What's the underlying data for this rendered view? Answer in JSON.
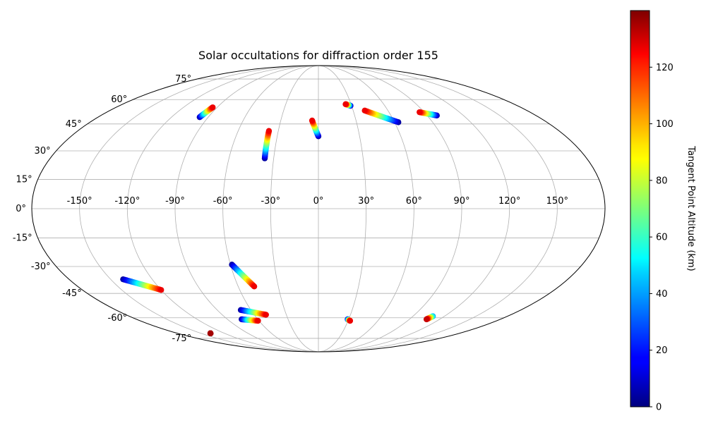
{
  "chart_data": {
    "type": "scatter",
    "projection": "mollweide",
    "title": "Solar occultations for diffraction order 155",
    "lon_ticks": [
      "-150°",
      "-120°",
      "-90°",
      "-60°",
      "-30°",
      "0°",
      "30°",
      "60°",
      "90°",
      "120°",
      "150°"
    ],
    "lat_ticks": [
      "75°",
      "60°",
      "45°",
      "30°",
      "15°",
      "0°",
      "-15°",
      "-30°",
      "-45°",
      "-60°",
      "-75°"
    ],
    "grid": true,
    "colorbar": {
      "label": "Tangent Point Altitude (km)",
      "colormap": "jet",
      "range": [
        0,
        140
      ],
      "ticks": [
        "0",
        "20",
        "40",
        "60",
        "80",
        "100",
        "120"
      ]
    },
    "tracks": [
      {
        "start": [
          -97,
          49
        ],
        "end": [
          -94,
          55
        ],
        "alt_start": 5,
        "alt_end": 125
      },
      {
        "start": [
          -36,
          26
        ],
        "end": [
          -37,
          41
        ],
        "alt_start": 5,
        "alt_end": 125
      },
      {
        "start": [
          0,
          38
        ],
        "end": [
          -5,
          47
        ],
        "alt_start": 5,
        "alt_end": 125
      },
      {
        "start": [
          29,
          56
        ],
        "end": [
          25,
          57
        ],
        "alt_start": 5,
        "alt_end": 125
      },
      {
        "start": [
          63,
          46
        ],
        "end": [
          40,
          53
        ],
        "alt_start": 5,
        "alt_end": 125
      },
      {
        "start": [
          98,
          50
        ],
        "end": [
          86,
          52
        ],
        "alt_start": 5,
        "alt_end": 125
      },
      {
        "start": [
          -141,
          -37
        ],
        "end": [
          -120,
          -43
        ],
        "alt_start": 5,
        "alt_end": 125
      },
      {
        "start": [
          -59,
          -29
        ],
        "end": [
          -48,
          -41
        ],
        "alt_start": 5,
        "alt_end": 125
      },
      {
        "start": [
          -69,
          -55
        ],
        "end": [
          -49,
          -58
        ],
        "alt_start": 5,
        "alt_end": 125
      },
      {
        "start": [
          -76,
          -61
        ],
        "end": [
          -61,
          -62
        ],
        "alt_start": 5,
        "alt_end": 125
      },
      {
        "start": [
          29,
          -61
        ],
        "end": [
          32,
          -62
        ],
        "alt_start": 5,
        "alt_end": 125
      },
      {
        "start": [
          109,
          -59
        ],
        "end": [
          107,
          -61
        ],
        "alt_start": 40,
        "alt_end": 130
      },
      {
        "start": [
          -138,
          -71
        ],
        "end": [
          -138,
          -71
        ],
        "alt_start": 135,
        "alt_end": 135
      }
    ]
  }
}
